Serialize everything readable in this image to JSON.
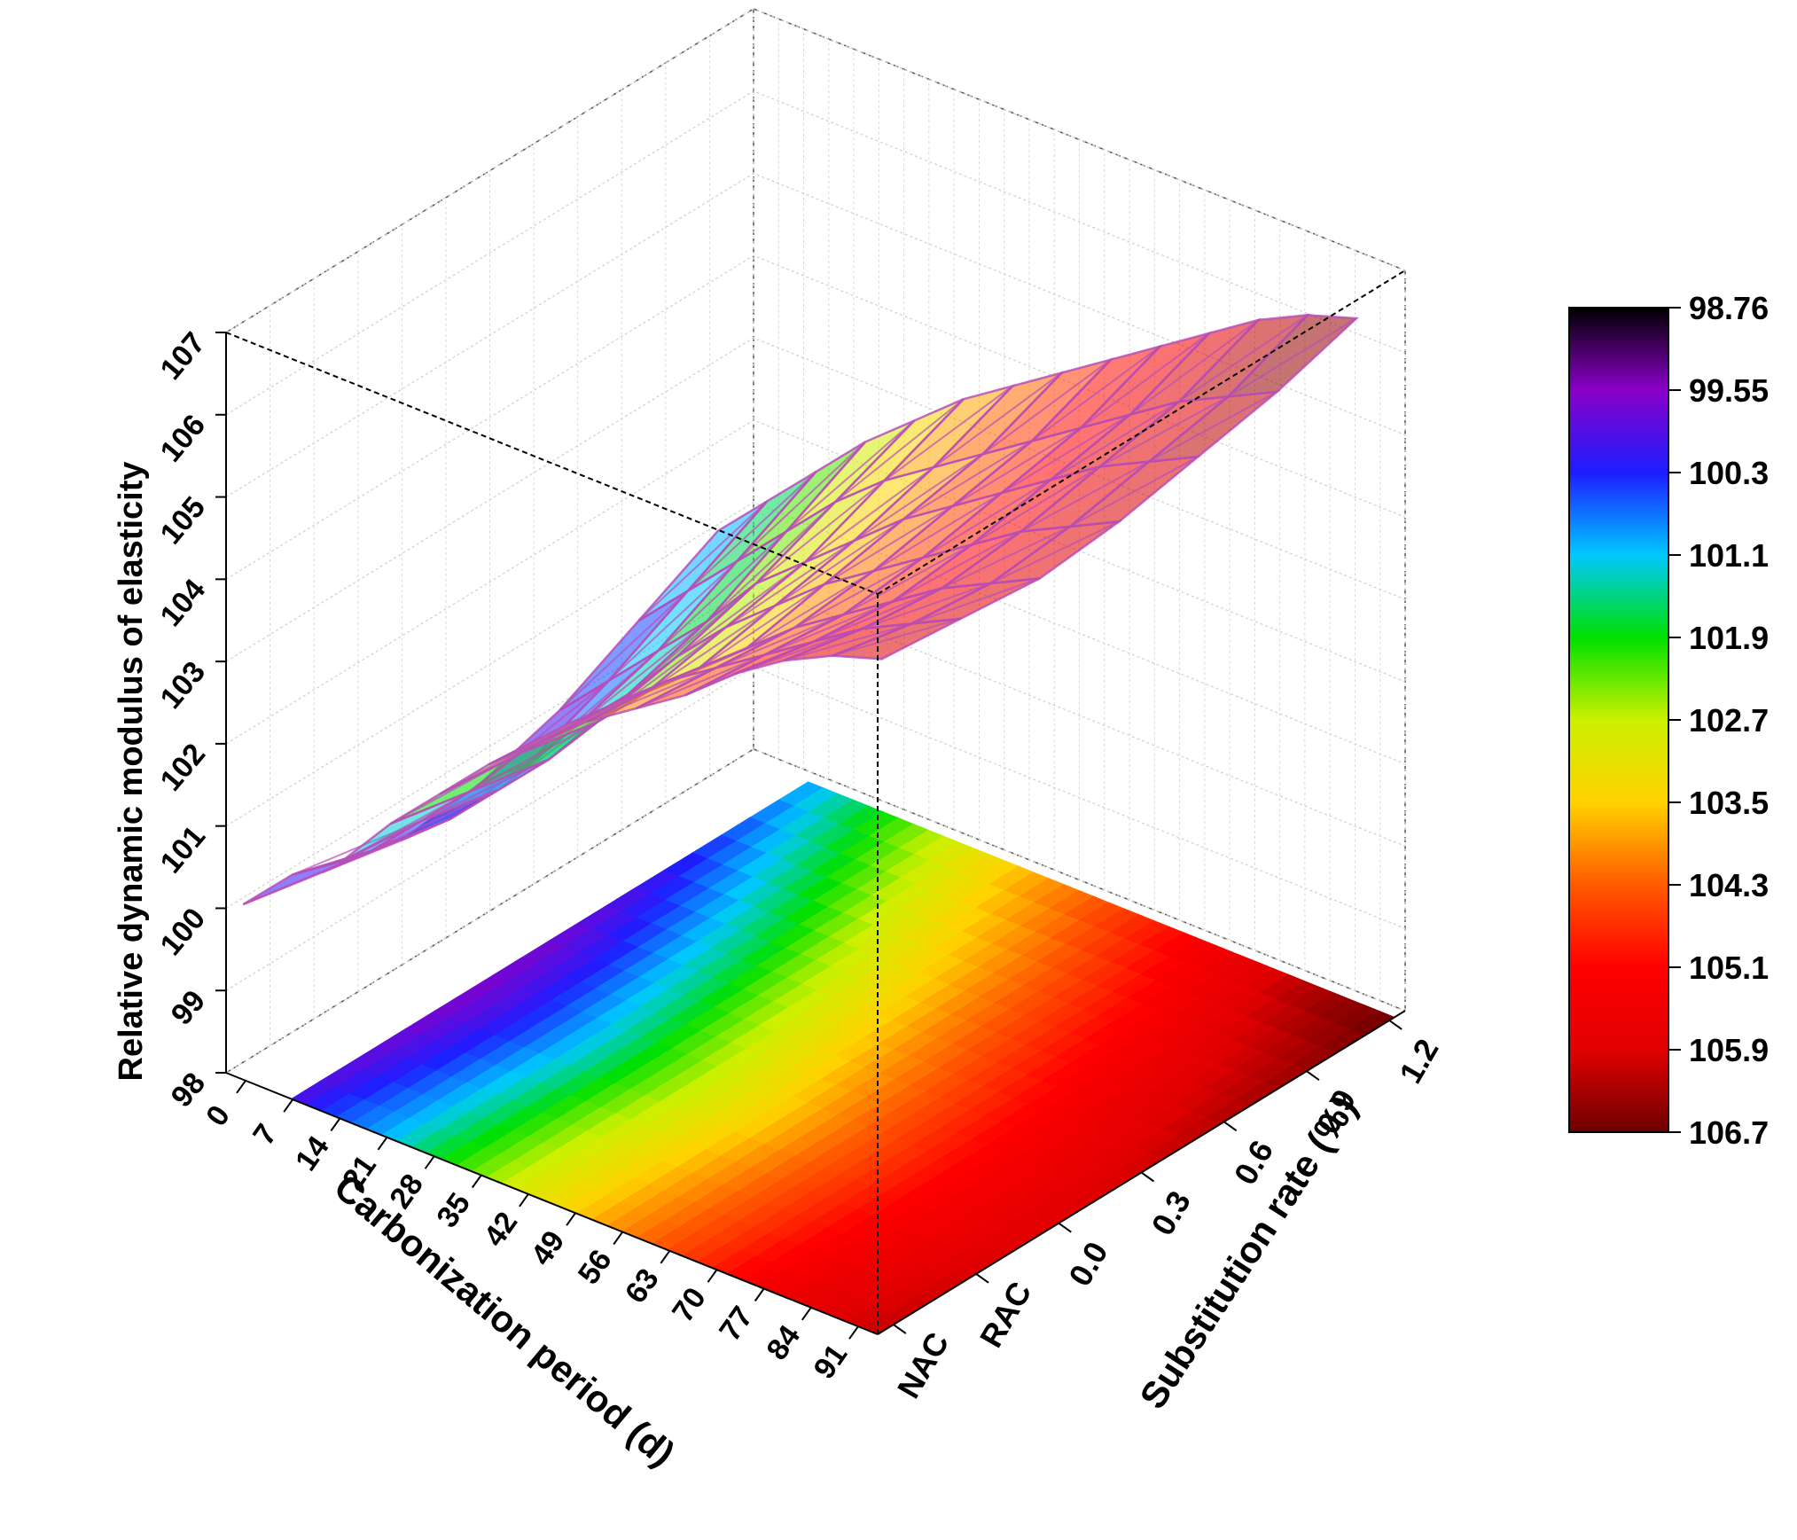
{
  "chart_data": {
    "type": "surface3d",
    "zlabel": "Relative dynamic modulus of elasticity",
    "xlabel": "Carbonization period (d)",
    "ylabel": "Substitution rate (%)",
    "x_ticks": [
      "0",
      "7",
      "14",
      "21",
      "28",
      "35",
      "42",
      "49",
      "56",
      "63",
      "70",
      "77",
      "84",
      "91"
    ],
    "y_ticks": [
      "NAC",
      "RAC",
      "0.0",
      "0.3",
      "0.6",
      "0.9",
      "1.2"
    ],
    "z_ticks": [
      "98",
      "99",
      "100",
      "101",
      "102",
      "103",
      "104",
      "105",
      "106",
      "107"
    ],
    "zlim": [
      98,
      107
    ],
    "colorbar": {
      "ticks": [
        "98.76",
        "99.55",
        "100.3",
        "101.1",
        "101.9",
        "102.7",
        "103.5",
        "104.3",
        "105.1",
        "105.9",
        "106.7"
      ],
      "colors": [
        "#000000",
        "#8a00c8",
        "#1d1dff",
        "#00c8ff",
        "#00e000",
        "#ccf000",
        "#ffd200",
        "#ff5a00",
        "#ff0000",
        "#e00000",
        "#6e0000"
      ]
    },
    "surface_z": [
      [
        100.0,
        100.6,
        101.0,
        101.7,
        102.3,
        102.9,
        103.4,
        103.9,
        104.3,
        104.7,
        105.2,
        105.6,
        105.9,
        106.1
      ],
      [
        99.8,
        100.3,
        100.9,
        101.5,
        102.2,
        102.8,
        103.3,
        103.8,
        104.2,
        104.6,
        105.0,
        105.4,
        105.7,
        106.0
      ],
      [
        99.6,
        100.1,
        100.7,
        101.3,
        102.0,
        102.6,
        103.1,
        103.6,
        104.1,
        104.5,
        104.9,
        105.3,
        105.6,
        105.9
      ],
      [
        99.7,
        100.2,
        100.9,
        101.5,
        102.2,
        102.8,
        103.3,
        103.8,
        104.2,
        104.6,
        105.0,
        105.4,
        105.7,
        106.0
      ],
      [
        100.0,
        100.6,
        101.2,
        101.8,
        102.5,
        103.0,
        103.5,
        104.0,
        104.4,
        104.8,
        105.2,
        105.6,
        105.9,
        106.2
      ],
      [
        100.5,
        101.1,
        101.7,
        102.3,
        102.9,
        103.4,
        103.8,
        104.2,
        104.6,
        105.0,
        105.4,
        105.8,
        106.1,
        106.4
      ],
      [
        101.0,
        101.6,
        102.2,
        102.8,
        103.3,
        103.8,
        104.2,
        104.6,
        105.0,
        105.4,
        105.8,
        106.2,
        106.5,
        106.7
      ]
    ]
  }
}
